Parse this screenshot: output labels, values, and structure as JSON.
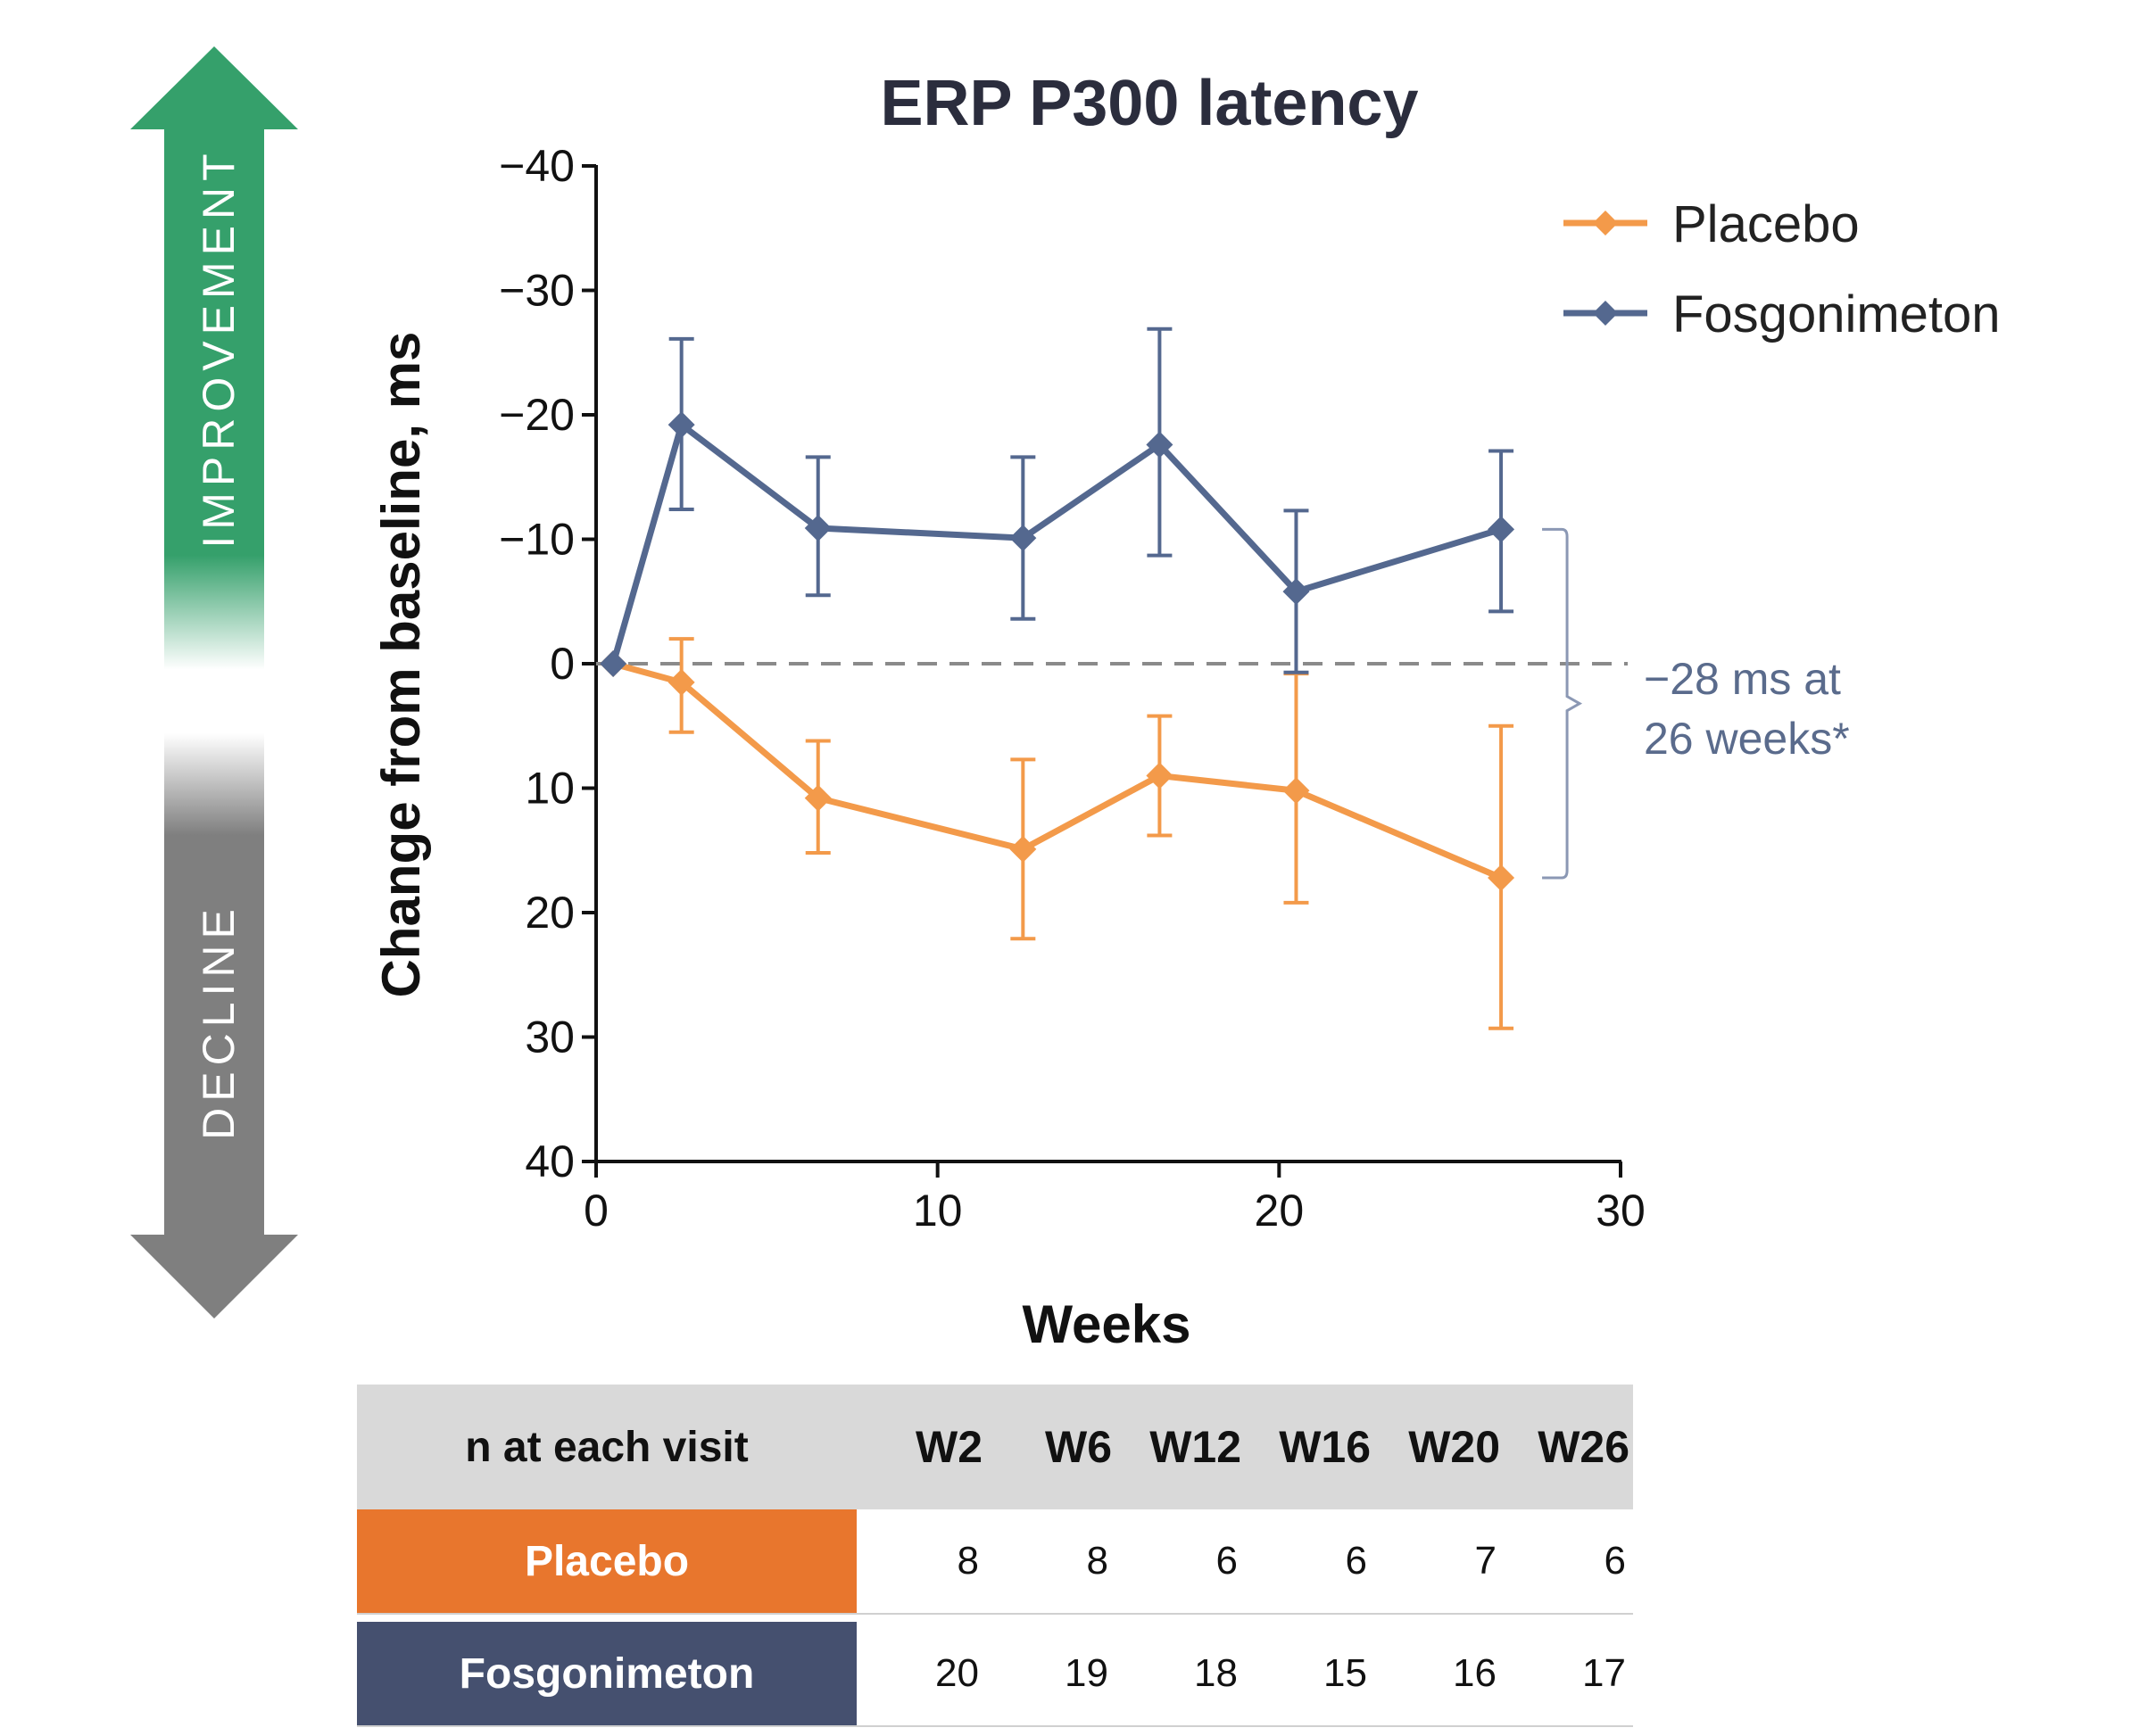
{
  "colors": {
    "placebo": "#f39a4a",
    "fosgonimeton": "#54688f",
    "improvement": "#35a06b",
    "decline": "#7f7f7f",
    "placebo_label_bg": "#e8762d",
    "fosgonimeton_label_bg": "#45506f",
    "annotation": "#5a6b8c"
  },
  "arrow": {
    "improvement_label": "IMPROVEMENT",
    "decline_label": "DECLINE"
  },
  "annotation": {
    "line1": "−28 ms at",
    "line2": "26 weeks*"
  },
  "chart_data": {
    "type": "line",
    "title": "ERP P300 latency",
    "xlabel": "Weeks",
    "ylabel": "Change from baseline, ms",
    "xlim": [
      0,
      30
    ],
    "ylim": [
      40,
      -40
    ],
    "y_inverted": true,
    "xticks": [
      0,
      10,
      20,
      30
    ],
    "yticks": [
      -40,
      -30,
      -20,
      -10,
      0,
      10,
      20,
      30,
      40
    ],
    "ytick_labels": [
      "−40",
      "−30",
      "−20",
      "−10",
      "0",
      "10",
      "20",
      "30",
      "40"
    ],
    "reference_line": {
      "y": 0,
      "style": "dashed"
    },
    "legend_position": "top-right",
    "grid": false,
    "series": [
      {
        "name": "Placebo",
        "color": "#f39a4a",
        "x": [
          0.5,
          2.5,
          6.5,
          12.5,
          16.5,
          20.5,
          26.5
        ],
        "y": [
          0,
          1.5,
          10.8,
          14.9,
          9.0,
          10.2,
          17.2
        ],
        "err_low": [
          null,
          -2.0,
          6.2,
          7.7,
          4.2,
          0.8,
          5.0
        ],
        "err_high": [
          null,
          5.5,
          15.2,
          22.1,
          13.8,
          19.2,
          29.3
        ]
      },
      {
        "name": "Fosgonimeton",
        "color": "#54688f",
        "x": [
          0.5,
          2.5,
          6.5,
          12.5,
          16.5,
          20.5,
          26.5
        ],
        "y": [
          0,
          -19.2,
          -10.9,
          -10.1,
          -17.6,
          -5.8,
          -10.8
        ],
        "err_low": [
          null,
          -26.1,
          -16.6,
          -16.6,
          -26.9,
          -12.3,
          -17.1
        ],
        "err_high": [
          null,
          -12.4,
          -5.5,
          -3.6,
          -8.7,
          0.7,
          -4.2
        ]
      }
    ]
  },
  "table": {
    "header_label": "n at each visit",
    "columns": [
      "W2",
      "W6",
      "W12",
      "W16",
      "W20",
      "W26"
    ],
    "rows": [
      {
        "label": "Placebo",
        "values": [
          "8",
          "8",
          "6",
          "6",
          "7",
          "6"
        ]
      },
      {
        "label": "Fosgonimeton",
        "values": [
          "20",
          "19",
          "18",
          "15",
          "16",
          "17"
        ]
      }
    ]
  }
}
